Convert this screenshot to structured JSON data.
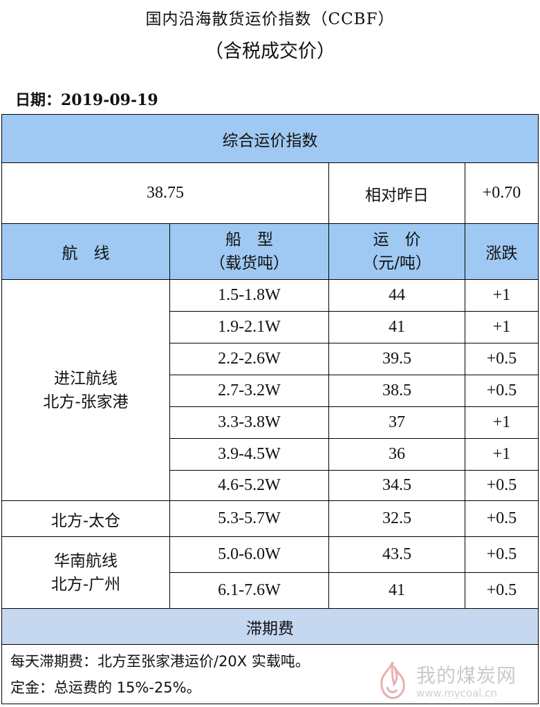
{
  "header": {
    "title": "国内沿海散货运价指数（CCBF）",
    "subtitle": "（含税成交价）",
    "date": "日期：2019-09-19"
  },
  "composite": {
    "heading": "综合运价指数",
    "value": "38.75",
    "compare_label": "相对昨日",
    "compare_value": "+0.70"
  },
  "columns": {
    "route": "航　线",
    "ship_type": "船　型",
    "ship_type_unit": "（载货吨）",
    "price": "运　价",
    "price_unit": "（元/吨）",
    "change": "涨跌"
  },
  "routes": [
    {
      "name_line1": "进江航线",
      "name_line2": "北方-张家港",
      "rows": [
        {
          "ship": "1.5-1.8W",
          "price": "44",
          "change": "+1"
        },
        {
          "ship": "1.9-2.1W",
          "price": "41",
          "change": "+1"
        },
        {
          "ship": "2.2-2.6W",
          "price": "39.5",
          "change": "+0.5"
        },
        {
          "ship": "2.7-3.2W",
          "price": "38.5",
          "change": "+0.5"
        },
        {
          "ship": "3.3-3.8W",
          "price": "37",
          "change": "+1"
        },
        {
          "ship": "3.9-4.5W",
          "price": "36",
          "change": "+1"
        },
        {
          "ship": "4.6-5.2W",
          "price": "34.5",
          "change": "+0.5"
        }
      ]
    },
    {
      "name_line1": "北方-太仓",
      "rows": [
        {
          "ship": "5.3-5.7W",
          "price": "32.5",
          "change": "+0.5"
        }
      ]
    },
    {
      "name_line1": "华南航线",
      "name_line2": "北方-广州",
      "rows": [
        {
          "ship": "5.0-6.0W",
          "price": "43.5",
          "change": "+0.5"
        },
        {
          "ship": "6.1-7.6W",
          "price": "41",
          "change": "+0.5"
        }
      ]
    }
  ],
  "demurrage": {
    "heading": "滞期费",
    "note1": "每天滞期费：北方至张家港运价/20X 实载吨。",
    "note2": "定金：总运费的 15%-25%。"
  },
  "watermark": {
    "text": "我的煤炭网",
    "url": "www.mycoal.cn"
  },
  "colors": {
    "header_blue": "#9fc9f3",
    "section_lavender": "#c6d7f0"
  }
}
